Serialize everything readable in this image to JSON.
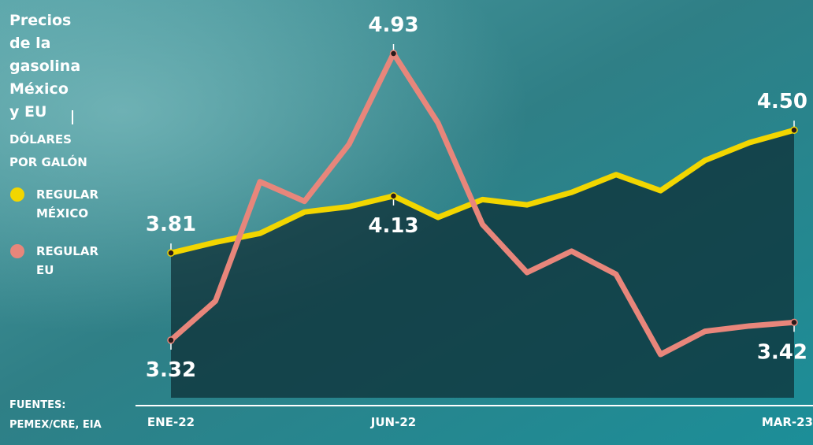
{
  "chart_data": {
    "type": "line",
    "title": "Precios de la gasolina México y EU",
    "subtitle": "DÓLARES POR GALÓN",
    "source": "FUENTES: PEMEX/CRE, EIA",
    "categories": [
      "ENE-22",
      null,
      null,
      null,
      null,
      "JUN-22",
      null,
      null,
      null,
      null,
      null,
      null,
      null,
      null,
      "MAR-23"
    ],
    "series": [
      {
        "name": "REGULAR MÉXICO",
        "color": "#f2d600",
        "values": [
          3.81,
          3.87,
          3.92,
          4.04,
          4.07,
          4.13,
          4.01,
          4.11,
          4.08,
          4.15,
          4.25,
          4.16,
          4.33,
          4.43,
          4.5
        ],
        "value_labels": [
          "3.81",
          null,
          null,
          null,
          null,
          "4.13",
          null,
          null,
          null,
          null,
          null,
          null,
          null,
          null,
          "4.50"
        ]
      },
      {
        "name": "REGULAR EU",
        "color": "#e8867b",
        "values": [
          3.32,
          3.54,
          4.21,
          4.1,
          4.42,
          4.93,
          4.54,
          3.97,
          3.7,
          3.82,
          3.69,
          3.24,
          3.37,
          3.4,
          3.42
        ],
        "value_labels": [
          "3.32",
          null,
          null,
          null,
          null,
          "4.93",
          null,
          null,
          null,
          null,
          null,
          null,
          null,
          null,
          "3.42"
        ]
      }
    ]
  }
}
